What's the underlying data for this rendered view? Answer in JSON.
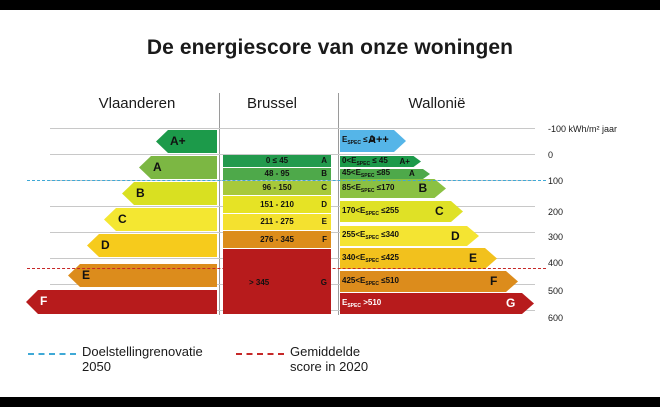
{
  "chart_data": {
    "type": "bar",
    "title": "De energiescore van onze woningen",
    "regions": [
      "Vlaanderen",
      "Brussel",
      "Wallonië"
    ],
    "scale_unit_label": "-100 kWh/m² jaar",
    "scale_ticks": [
      "0",
      "100",
      "200",
      "300",
      "400",
      "500",
      "600"
    ],
    "vlaanderen": [
      {
        "label": "A+",
        "color": "#1c9a4a"
      },
      {
        "label": "A",
        "color": "#7cb743"
      },
      {
        "label": "B",
        "color": "#d9e021"
      },
      {
        "label": "C",
        "color": "#f4e731"
      },
      {
        "label": "D",
        "color": "#f6cb1c"
      },
      {
        "label": "E",
        "color": "#dc8c1c"
      },
      {
        "label": "F",
        "color": "#b71b1c"
      }
    ],
    "brussel": [
      {
        "range": "0 ≤ 45",
        "letter": "A",
        "color": "#239a4d"
      },
      {
        "range": "48 - 95",
        "letter": "B",
        "color": "#4ea94a"
      },
      {
        "range": "96 - 150",
        "letter": "C",
        "color": "#a7c93b"
      },
      {
        "range": "151 - 210",
        "letter": "D",
        "color": "#e6e325"
      },
      {
        "range": "211 - 275",
        "letter": "E",
        "color": "#f4e12f"
      },
      {
        "range": "276 - 345",
        "letter": "F",
        "color": "#dc8d1b"
      },
      {
        "range": "> 345",
        "letter": "G",
        "color": "#b71b1c"
      }
    ],
    "wallonie": [
      {
        "pre": "E",
        "sub": "SPEC",
        "post": " ≤ D",
        "letter": "A++",
        "color": "#55b5e8"
      },
      {
        "pre": "0<E",
        "sub": "SPEC",
        "post": " ≤ 45",
        "letter": "A+",
        "color": "#1c9a4a"
      },
      {
        "pre": "45<E",
        "sub": "SPEC",
        "post": " ≤85",
        "letter": "A",
        "color": "#4ea94a"
      },
      {
        "pre": "85<E",
        "sub": "SPEC",
        "post": " ≤170",
        "letter": "B",
        "color": "#8bc143"
      },
      {
        "pre": "170<E",
        "sub": "SPEC",
        "post": " ≤255",
        "letter": "C",
        "color": "#dfe126"
      },
      {
        "pre": "255<E",
        "sub": "SPEC",
        "post": " ≤340",
        "letter": "D",
        "color": "#f4e432"
      },
      {
        "pre": "340<E",
        "sub": "SPEC",
        "post": " ≤425",
        "letter": "E",
        "color": "#f2c11d"
      },
      {
        "pre": "425<E",
        "sub": "SPEC",
        "post": " ≤510",
        "letter": "F",
        "color": "#dc8c1c"
      },
      {
        "pre": "E",
        "sub": "SPEC",
        "post": " >510",
        "letter": "G",
        "color": "#b71b1c"
      }
    ],
    "reference_lines": [
      {
        "name": "Doelstellingrenovatie 2050",
        "value": 100,
        "color": "#3fa9d6"
      },
      {
        "name": "Gemiddelde score in 2020",
        "value": 420,
        "color": "#c62828"
      }
    ]
  },
  "legend": {
    "target_line1": "Doelstellingrenovatie",
    "target_line2": "2050",
    "average_line1": "Gemiddelde",
    "average_line2": "score in 2020"
  }
}
